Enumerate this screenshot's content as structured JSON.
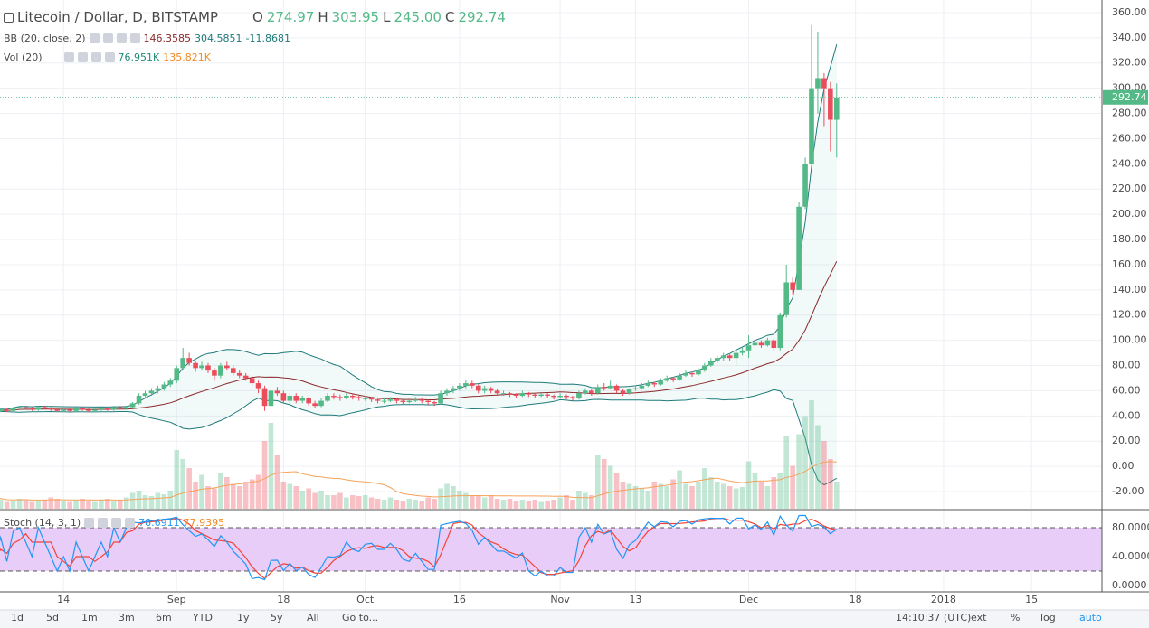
{
  "header": {
    "title": "Litecoin / Dollar, D, BITSTAMP",
    "o_label": "O",
    "h_label": "H",
    "l_label": "L",
    "c_label": "C",
    "ohlc_labels": [
      "274.97",
      "303.95",
      "245.00",
      "292.74"
    ]
  },
  "chart_data": {
    "type": "candlestick",
    "up_color": "#53b987",
    "down_color": "#eb4d5c",
    "candles": [
      [
        44,
        46,
        43,
        44
      ],
      [
        44,
        46,
        43,
        45
      ],
      [
        45,
        46,
        43,
        44
      ],
      [
        44,
        47,
        43,
        46
      ],
      [
        46,
        48,
        45,
        47
      ],
      [
        47,
        48,
        45,
        46
      ],
      [
        46,
        47,
        44,
        45
      ],
      [
        45,
        48,
        44,
        47
      ],
      [
        47,
        48,
        45,
        46
      ],
      [
        46,
        47,
        44,
        45
      ],
      [
        45,
        46,
        43,
        44
      ],
      [
        44,
        46,
        43,
        45
      ],
      [
        45,
        46,
        43,
        44
      ],
      [
        44,
        47,
        43,
        46
      ],
      [
        46,
        47,
        44,
        45
      ],
      [
        45,
        46,
        43,
        44
      ],
      [
        44,
        46,
        43,
        45
      ],
      [
        45,
        47,
        44,
        46
      ],
      [
        46,
        47,
        44,
        45
      ],
      [
        45,
        48,
        44,
        47
      ],
      [
        47,
        48,
        45,
        46
      ],
      [
        46,
        48,
        45,
        47
      ],
      [
        47,
        51,
        46,
        50
      ],
      [
        50,
        58,
        49,
        56
      ],
      [
        56,
        60,
        54,
        58
      ],
      [
        58,
        62,
        56,
        60
      ],
      [
        60,
        64,
        58,
        62
      ],
      [
        62,
        67,
        60,
        65
      ],
      [
        65,
        70,
        63,
        68
      ],
      [
        68,
        80,
        66,
        78
      ],
      [
        78,
        94,
        76,
        86
      ],
      [
        86,
        90,
        80,
        82
      ],
      [
        82,
        84,
        75,
        78
      ],
      [
        78,
        83,
        76,
        80
      ],
      [
        80,
        82,
        74,
        76
      ],
      [
        76,
        78,
        68,
        72
      ],
      [
        72,
        82,
        70,
        80
      ],
      [
        80,
        83,
        76,
        78
      ],
      [
        78,
        80,
        72,
        74
      ],
      [
        74,
        76,
        70,
        72
      ],
      [
        72,
        74,
        68,
        70
      ],
      [
        70,
        72,
        64,
        66
      ],
      [
        66,
        68,
        58,
        62
      ],
      [
        62,
        64,
        44,
        48
      ],
      [
        48,
        64,
        46,
        60
      ],
      [
        60,
        63,
        56,
        58
      ],
      [
        58,
        60,
        50,
        52
      ],
      [
        52,
        58,
        50,
        56
      ],
      [
        56,
        58,
        50,
        52
      ],
      [
        52,
        56,
        50,
        54
      ],
      [
        54,
        55,
        48,
        50
      ],
      [
        50,
        52,
        46,
        48
      ],
      [
        48,
        54,
        47,
        52
      ],
      [
        52,
        58,
        51,
        56
      ],
      [
        56,
        58,
        53,
        55
      ],
      [
        55,
        57,
        52,
        54
      ],
      [
        54,
        58,
        53,
        56
      ],
      [
        56,
        57,
        53,
        55
      ],
      [
        55,
        56,
        52,
        54
      ],
      [
        54,
        56,
        52,
        54
      ],
      [
        54,
        55,
        51,
        53
      ],
      [
        53,
        54,
        50,
        52
      ],
      [
        52,
        54,
        50,
        52
      ],
      [
        52,
        55,
        51,
        53
      ],
      [
        53,
        54,
        50,
        52
      ],
      [
        52,
        53,
        49,
        51
      ],
      [
        51,
        54,
        50,
        52
      ],
      [
        52,
        55,
        51,
        53
      ],
      [
        53,
        54,
        50,
        52
      ],
      [
        52,
        53,
        49,
        51
      ],
      [
        51,
        52,
        48,
        50
      ],
      [
        50,
        60,
        49,
        58
      ],
      [
        58,
        62,
        56,
        60
      ],
      [
        60,
        64,
        58,
        62
      ],
      [
        62,
        66,
        60,
        64
      ],
      [
        64,
        69,
        62,
        66
      ],
      [
        66,
        68,
        62,
        64
      ],
      [
        64,
        65,
        58,
        60
      ],
      [
        60,
        64,
        58,
        62
      ],
      [
        62,
        63,
        58,
        60
      ],
      [
        60,
        61,
        56,
        58
      ],
      [
        58,
        60,
        56,
        58
      ],
      [
        58,
        59,
        55,
        57
      ],
      [
        57,
        58,
        54,
        56
      ],
      [
        56,
        60,
        55,
        58
      ],
      [
        58,
        59,
        55,
        57
      ],
      [
        57,
        58,
        54,
        56
      ],
      [
        56,
        58,
        55,
        57
      ],
      [
        57,
        58,
        54,
        56
      ],
      [
        56,
        57,
        53,
        55
      ],
      [
        55,
        58,
        54,
        56
      ],
      [
        56,
        57,
        53,
        55
      ],
      [
        55,
        56,
        52,
        54
      ],
      [
        54,
        60,
        53,
        58
      ],
      [
        58,
        62,
        57,
        60
      ],
      [
        60,
        61,
        56,
        58
      ],
      [
        58,
        65,
        57,
        63
      ],
      [
        63,
        66,
        60,
        62
      ],
      [
        62,
        68,
        61,
        64
      ],
      [
        64,
        65,
        58,
        60
      ],
      [
        60,
        61,
        56,
        58
      ],
      [
        58,
        62,
        57,
        61
      ],
      [
        61,
        64,
        60,
        62
      ],
      [
        62,
        66,
        61,
        64
      ],
      [
        64,
        68,
        63,
        66
      ],
      [
        66,
        67,
        63,
        65
      ],
      [
        65,
        70,
        64,
        68
      ],
      [
        68,
        72,
        67,
        70
      ],
      [
        70,
        71,
        67,
        69
      ],
      [
        69,
        74,
        68,
        72
      ],
      [
        72,
        76,
        71,
        74
      ],
      [
        74,
        75,
        71,
        73
      ],
      [
        73,
        78,
        72,
        76
      ],
      [
        76,
        82,
        75,
        80
      ],
      [
        80,
        86,
        79,
        84
      ],
      [
        84,
        88,
        82,
        86
      ],
      [
        86,
        90,
        84,
        88
      ],
      [
        88,
        89,
        84,
        86
      ],
      [
        86,
        92,
        80,
        90
      ],
      [
        90,
        94,
        88,
        92
      ],
      [
        92,
        104,
        86,
        96
      ],
      [
        96,
        100,
        93,
        98
      ],
      [
        98,
        100,
        94,
        96
      ],
      [
        96,
        102,
        95,
        100
      ],
      [
        100,
        101,
        92,
        94
      ],
      [
        94,
        122,
        92,
        120
      ],
      [
        120,
        160,
        118,
        146
      ],
      [
        146,
        150,
        136,
        140
      ],
      [
        140,
        210,
        140,
        206
      ],
      [
        206,
        245,
        204,
        240
      ],
      [
        240,
        350,
        238,
        300
      ],
      [
        300,
        345,
        280,
        308
      ],
      [
        308,
        312,
        270,
        300
      ],
      [
        300,
        305,
        250,
        275
      ],
      [
        274.97,
        303.95,
        245,
        292.74
      ]
    ],
    "xlim": [
      0.9,
      176.2
    ],
    "xticks": [
      {
        "value": 11,
        "label": "14"
      },
      {
        "value": 29,
        "label": "Sep"
      },
      {
        "value": 46,
        "label": "18"
      },
      {
        "value": 59,
        "label": "Oct"
      },
      {
        "value": 74,
        "label": "16"
      },
      {
        "value": 90,
        "label": "Nov"
      },
      {
        "value": 102,
        "label": "13"
      },
      {
        "value": 120,
        "label": "Dec"
      },
      {
        "value": 137,
        "label": "18"
      },
      {
        "value": 151,
        "label": "2018"
      },
      {
        "value": 165,
        "label": "15"
      }
    ],
    "ylim": [
      -33.6,
      370
    ],
    "yticks": [
      {
        "value": 360,
        "label": "360.00"
      },
      {
        "value": 340,
        "label": "340.00"
      },
      {
        "value": 320,
        "label": "320.00"
      },
      {
        "value": 300,
        "label": "300.00"
      },
      {
        "value": 280,
        "label": "280.00"
      },
      {
        "value": 260,
        "label": "260.00"
      },
      {
        "value": 240,
        "label": "240.00"
      },
      {
        "value": 220,
        "label": "220.00"
      },
      {
        "value": 200,
        "label": "200.00"
      },
      {
        "value": 180,
        "label": "180.00"
      },
      {
        "value": 160,
        "label": "160.00"
      },
      {
        "value": 140,
        "label": "140.00"
      },
      {
        "value": 120,
        "label": "120.00"
      },
      {
        "value": 100,
        "label": "100.00"
      },
      {
        "value": 80,
        "label": "80.00"
      },
      {
        "value": 60,
        "label": "60.00"
      },
      {
        "value": 40,
        "label": "40.00"
      },
      {
        "value": 20,
        "label": "20.00"
      },
      {
        "value": 0,
        "label": "0.00"
      },
      {
        "value": -20,
        "label": "-20.00"
      }
    ],
    "grid": true,
    "bb": {
      "name": "BB (20, close, 2)",
      "legend": [
        146.3585,
        304.5851,
        -11.8681
      ]
    },
    "volume": {
      "name": "Vol (20)",
      "legend": [
        {
          "value": 76.951,
          "label": "76.951K"
        },
        {
          "value": 135.821,
          "label": "135.821K"
        }
      ],
      "values": [
        25,
        20,
        15,
        18,
        22,
        20,
        15,
        18,
        20,
        25,
        22,
        18,
        15,
        20,
        22,
        18,
        15,
        20,
        22,
        18,
        20,
        25,
        35,
        40,
        30,
        28,
        35,
        32,
        40,
        130,
        110,
        90,
        60,
        75,
        50,
        45,
        80,
        70,
        55,
        50,
        60,
        65,
        75,
        150,
        190,
        120,
        60,
        55,
        50,
        40,
        45,
        35,
        40,
        30,
        30,
        35,
        25,
        30,
        28,
        30,
        25,
        22,
        20,
        25,
        20,
        18,
        22,
        20,
        18,
        25,
        22,
        45,
        55,
        50,
        40,
        35,
        30,
        28,
        25,
        30,
        22,
        20,
        22,
        18,
        20,
        18,
        20,
        15,
        18,
        20,
        25,
        30,
        20,
        40,
        35,
        30,
        120,
        110,
        95,
        80,
        60,
        55,
        50,
        45,
        40,
        60,
        55,
        50,
        65,
        85,
        55,
        50,
        60,
        90,
        70,
        60,
        55,
        50,
        45,
        48,
        105,
        80,
        60,
        50,
        70,
        80,
        160,
        95,
        165,
        205,
        240,
        185,
        150,
        110,
        60
      ]
    },
    "stoch": {
      "name": "Stoch (14, 3, 1)",
      "legend": [
        78.6911,
        77.9395
      ],
      "ylim": [
        -8.75,
        103.75
      ],
      "band": [
        20,
        80
      ],
      "yticks": [
        {
          "value": 80,
          "label": "80.0000"
        },
        {
          "value": 40,
          "label": "40.0000"
        },
        {
          "value": 0,
          "label": "0.0000"
        }
      ]
    }
  },
  "toolbar": {
    "ranges": [
      "1d",
      "5d",
      "1m",
      "3m",
      "6m",
      "YTD",
      "1y",
      "5y",
      "All"
    ],
    "goto": "Go to...",
    "time": "14:10:37 (UTC)",
    "options": [
      "ext",
      "%",
      "log",
      "auto"
    ]
  }
}
